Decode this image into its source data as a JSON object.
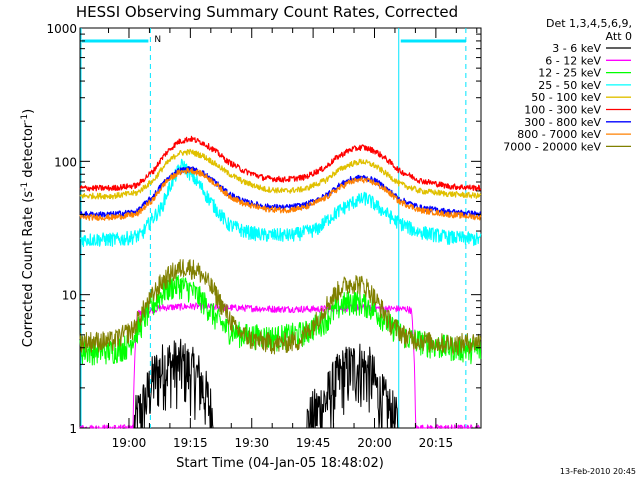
{
  "chart_data": {
    "type": "line",
    "title": "HESSI Observing Summary Count Rates, Corrected",
    "xlabel": "Start Time (04-Jan-05 18:48:02)",
    "ylabel_main": "Corrected Count Rate (s",
    "ylabel_sup1": "-1",
    "ylabel_mid": " detector",
    "ylabel_sup2": "-1",
    "ylabel_end": ")",
    "y_scale": "log",
    "ylim": [
      1,
      1000
    ],
    "xlim_minutes": [
      0,
      98
    ],
    "x_ticks": [
      {
        "label": "19:00",
        "minutes": 11.97
      },
      {
        "label": "19:15",
        "minutes": 26.97
      },
      {
        "label": "19:30",
        "minutes": 41.97
      },
      {
        "label": "19:45",
        "minutes": 56.97
      },
      {
        "label": "20:00",
        "minutes": 71.97
      },
      {
        "label": "20:15",
        "minutes": 86.97
      }
    ],
    "y_ticks": [
      {
        "label": "1",
        "value": 1
      },
      {
        "label": "10",
        "value": 10
      },
      {
        "label": "100",
        "value": 100
      },
      {
        "label": "1000",
        "value": 1000
      }
    ],
    "legend_header": [
      "Det 1,3,4,5,6,9,",
      "Att 0"
    ],
    "legend_position": "right",
    "footer_date": "13-Feb-2010 20:45",
    "attenuator_marker_label": "N",
    "orbit_markers": {
      "night_ends_minutes": [
        17.2,
        78.0
      ],
      "solid_lines_minutes": [
        0.0,
        77.9
      ],
      "dashed_lines_minutes": [
        17.2,
        94.3
      ],
      "top_bar_color": "#00e5ff"
    },
    "series": [
      {
        "name": "3 - 6 keV",
        "color": "#000000",
        "x": [
          0,
          13,
          16,
          18,
          21,
          25,
          29,
          31,
          33,
          55,
          60,
          64,
          68,
          71,
          73,
          76,
          78,
          98
        ],
        "y": [
          1,
          1,
          1.6,
          2.4,
          3.0,
          3.0,
          2.4,
          1.7,
          1,
          1,
          1.6,
          2.6,
          3.0,
          2.6,
          1.8,
          1.3,
          1,
          1
        ]
      },
      {
        "name": "6 - 12 keV",
        "color": "#ff00ff",
        "x": [
          0,
          13,
          14,
          20,
          28,
          36,
          48,
          58,
          68,
          74,
          80,
          81,
          82,
          98
        ],
        "y": [
          1,
          1,
          7.2,
          8.0,
          8.2,
          8.0,
          7.8,
          7.8,
          8.0,
          7.9,
          7.8,
          7.6,
          1,
          1
        ]
      },
      {
        "name": "12 - 25 keV",
        "color": "#00ff00",
        "x": [
          0,
          8,
          12,
          15,
          18,
          21,
          24,
          27,
          30,
          33,
          36,
          40,
          48,
          55,
          60,
          64,
          67,
          70,
          73,
          76,
          80,
          86,
          92,
          98
        ],
        "y": [
          3.8,
          3.8,
          4.2,
          6.0,
          8.5,
          11.0,
          12.0,
          11.0,
          9.0,
          6.8,
          5.5,
          5.0,
          4.8,
          5.2,
          6.5,
          8.5,
          9.0,
          8.5,
          7.2,
          5.8,
          4.8,
          4.2,
          4.0,
          3.8
        ]
      },
      {
        "name": "25 - 50 keV",
        "color": "#00ffff",
        "x": [
          0,
          10,
          15,
          20,
          23,
          25,
          27,
          29,
          31,
          33,
          36,
          40,
          45,
          52,
          58,
          63,
          67,
          70,
          73,
          77,
          82,
          90,
          98
        ],
        "y": [
          26,
          26,
          28,
          45,
          75,
          95,
          80,
          68,
          55,
          45,
          34,
          30,
          28,
          28,
          31,
          42,
          50,
          53,
          45,
          36,
          30,
          27,
          26
        ]
      },
      {
        "name": "50 - 100 keV",
        "color": "#e0c000",
        "x": [
          0,
          8,
          14,
          18,
          21,
          24,
          27,
          30,
          33,
          36,
          40,
          45,
          50,
          55,
          60,
          63,
          66,
          69,
          72,
          75,
          78,
          83,
          90,
          98
        ],
        "y": [
          55,
          55,
          58,
          72,
          95,
          115,
          118,
          110,
          96,
          82,
          70,
          62,
          60,
          62,
          72,
          85,
          95,
          100,
          93,
          80,
          68,
          60,
          57,
          55
        ]
      },
      {
        "name": "100 - 300 keV",
        "color": "#ff0000",
        "x": [
          0,
          8,
          14,
          18,
          21,
          24,
          27,
          30,
          33,
          36,
          40,
          45,
          50,
          55,
          60,
          63,
          66,
          69,
          72,
          75,
          78,
          83,
          90,
          98
        ],
        "y": [
          63,
          63,
          66,
          85,
          115,
          140,
          148,
          138,
          120,
          100,
          85,
          75,
          73,
          76,
          90,
          108,
          122,
          128,
          120,
          103,
          85,
          72,
          65,
          63
        ]
      },
      {
        "name": "300 - 800 keV",
        "color": "#0000ff",
        "x": [
          0,
          8,
          14,
          18,
          21,
          24,
          27,
          30,
          33,
          36,
          40,
          45,
          50,
          55,
          60,
          63,
          66,
          69,
          72,
          75,
          78,
          83,
          90,
          98
        ],
        "y": [
          40,
          40,
          42,
          55,
          72,
          85,
          88,
          82,
          70,
          58,
          50,
          46,
          45,
          47,
          55,
          65,
          73,
          76,
          72,
          62,
          52,
          45,
          42,
          40
        ]
      },
      {
        "name": "800 - 7000 keV",
        "color": "#ff8000",
        "x": [
          0,
          8,
          14,
          18,
          21,
          24,
          27,
          30,
          33,
          36,
          40,
          45,
          50,
          55,
          60,
          63,
          66,
          69,
          72,
          75,
          78,
          83,
          90,
          98
        ],
        "y": [
          38,
          38,
          40,
          52,
          70,
          82,
          86,
          80,
          68,
          56,
          48,
          44,
          43,
          45,
          53,
          62,
          70,
          73,
          69,
          60,
          50,
          43,
          40,
          38
        ]
      },
      {
        "name": "7000 - 20000 keV",
        "color": "#808000",
        "x": [
          0,
          8,
          13,
          17,
          20,
          23,
          26,
          29,
          32,
          35,
          38,
          42,
          48,
          54,
          58,
          61,
          64,
          67,
          70,
          73,
          76,
          80,
          86,
          92,
          98
        ],
        "y": [
          4.5,
          4.5,
          5.5,
          9.0,
          12.5,
          15.0,
          16.5,
          15.0,
          11.5,
          8.0,
          5.5,
          4.6,
          4.3,
          4.6,
          6.5,
          9.0,
          11.5,
          12.5,
          11.5,
          8.5,
          6.0,
          4.8,
          4.4,
          4.3,
          4.5
        ]
      }
    ]
  }
}
